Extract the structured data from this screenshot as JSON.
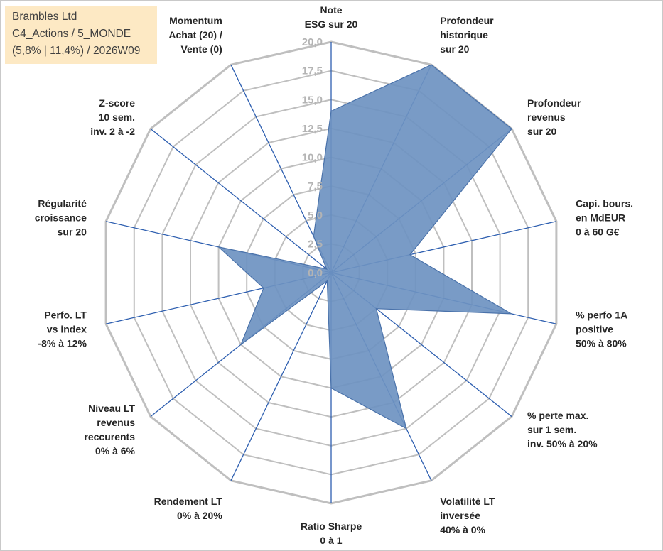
{
  "info_box": {
    "line1": "Brambles Ltd",
    "line2": "C4_Actions / 5_MONDE",
    "line3": "(5,8% | 11,4%) / 2026W09"
  },
  "colors": {
    "fill": "#6e93c1",
    "stroke": "#4a72aa",
    "spoke": "#2e5fb0",
    "grid": "#bfbfbf",
    "info_box_bg": "#fde9c4"
  },
  "chart_data": {
    "type": "radar",
    "title": "",
    "rmax": 20,
    "tick_labels": [
      "0,0",
      "2,5",
      "5,0",
      "7,5",
      "10,0",
      "12,5",
      "15,0",
      "17,5",
      "20,0"
    ],
    "axes": [
      {
        "label": [
          "Note",
          "ESG sur 20"
        ]
      },
      {
        "label": [
          "Profondeur",
          "historique",
          "sur 20"
        ]
      },
      {
        "label": [
          "Profondeur",
          "revenus",
          "sur 20"
        ]
      },
      {
        "label": [
          "Capi. bours.",
          "en MdEUR",
          "0 à 60 G€"
        ]
      },
      {
        "label": [
          "% perfo 1A",
          "positive",
          "50% à 80%"
        ]
      },
      {
        "label": [
          "% perte max.",
          "sur 1 sem.",
          "inv. 50% à 20%"
        ]
      },
      {
        "label": [
          "Volatilité LT",
          "inversée",
          "40% à 0%"
        ]
      },
      {
        "label": [
          "Ratio Sharpe",
          "0 à 1"
        ]
      },
      {
        "label": [
          "Rendement LT",
          "0% à 20%"
        ]
      },
      {
        "label": [
          "Niveau LT",
          "revenus",
          "reccurents",
          "0% à 6%"
        ]
      },
      {
        "label": [
          "Perfo. LT",
          "vs index",
          "-8% à 12%"
        ]
      },
      {
        "label": [
          "Régularité",
          "croissance",
          "sur 20"
        ]
      },
      {
        "label": [
          "Z-score",
          "10 sem.",
          "inv. 2 à -2"
        ]
      },
      {
        "label": [
          "Momentum",
          "Achat (20) /",
          "Vente (0)"
        ]
      }
    ],
    "series": [
      {
        "values": [
          14.0,
          20.0,
          20.0,
          7.0,
          16.0,
          5.0,
          15.0,
          10.0,
          0.8,
          10.0,
          6.0,
          10.0,
          0.5,
          3.5
        ]
      }
    ],
    "grid": true
  }
}
